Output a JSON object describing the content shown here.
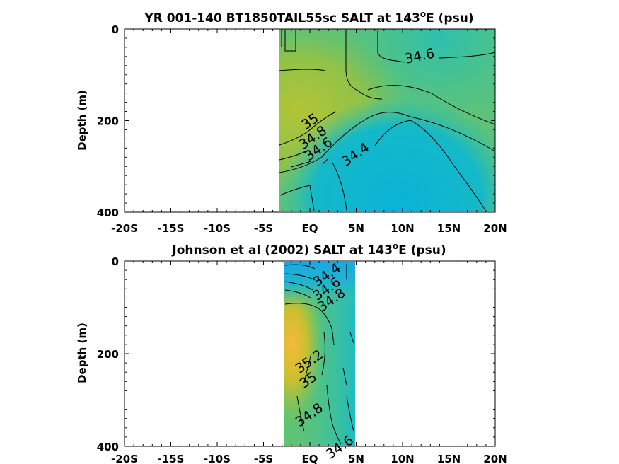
{
  "chart_data": [
    {
      "type": "contour",
      "title": "YR 001-140 BT1850TAIL55sc SALT at 143",
      "title_sup": "o",
      "title_after": "E (psu)",
      "ylabel": "Depth (m)",
      "xlabel": "",
      "x_ticks": [
        "-20S",
        "-15S",
        "-10S",
        "-5S",
        "EQ",
        "5N",
        "10N",
        "15N",
        "20N"
      ],
      "x_tick_values": [
        -20,
        -15,
        -10,
        -5,
        0,
        5,
        10,
        15,
        20
      ],
      "y_ticks": [
        "0",
        "200",
        "400"
      ],
      "y_tick_values": [
        0,
        200,
        400
      ],
      "xlim": [
        -20,
        20
      ],
      "ylim": [
        0,
        400
      ],
      "y_reversed": true,
      "data_extent_lat": [
        -3.2,
        20
      ],
      "contour_labels": [
        {
          "text": "34.6",
          "lat": 12,
          "depth": 68
        },
        {
          "text": "35",
          "lat": 0.3,
          "depth": 210
        },
        {
          "text": "34.8",
          "lat": 0.6,
          "depth": 245
        },
        {
          "text": "34.6",
          "lat": 1.2,
          "depth": 270
        },
        {
          "text": "34.4",
          "lat": 5.2,
          "depth": 282
        }
      ]
    },
    {
      "type": "contour",
      "title": "Johnson et al (2002) SALT at 143",
      "title_sup": "o",
      "title_after": "E (psu)",
      "ylabel": "Depth (m)",
      "xlabel": "",
      "x_ticks": [
        "-20S",
        "-15S",
        "-10S",
        "-5S",
        "EQ",
        "5N",
        "10N",
        "15N",
        "20N"
      ],
      "x_tick_values": [
        -20,
        -15,
        -10,
        -5,
        0,
        5,
        10,
        15,
        20
      ],
      "y_ticks": [
        "0",
        "200",
        "400"
      ],
      "y_tick_values": [
        0,
        200,
        400
      ],
      "xlim": [
        -20,
        20
      ],
      "ylim": [
        0,
        400
      ],
      "y_reversed": true,
      "data_extent_lat": [
        -2.7,
        5
      ],
      "contour_labels": [
        {
          "text": "34.4",
          "lat": 2.1,
          "depth": 38
        },
        {
          "text": "34.6",
          "lat": 2.1,
          "depth": 68
        },
        {
          "text": "34.8",
          "lat": 2.6,
          "depth": 92
        },
        {
          "text": "35.2",
          "lat": 0.2,
          "depth": 225
        },
        {
          "text": "35",
          "lat": 0.1,
          "depth": 265
        },
        {
          "text": "34.8",
          "lat": 0.2,
          "depth": 340
        },
        {
          "text": "34.6",
          "lat": 3.5,
          "depth": 410
        }
      ]
    }
  ]
}
